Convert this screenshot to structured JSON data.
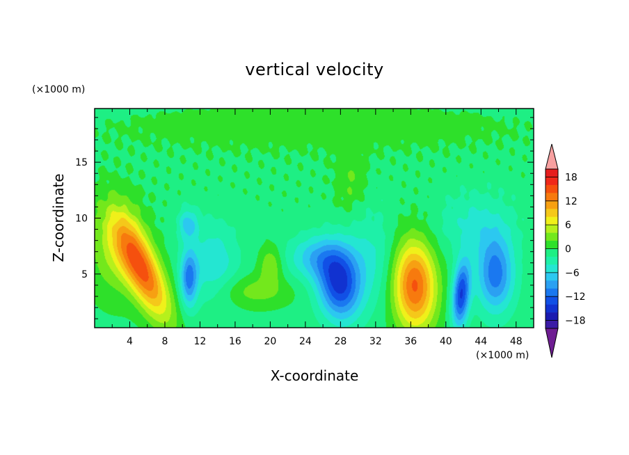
{
  "chart_data": {
    "type": "heatmap",
    "title": "vertical velocity",
    "xlabel": "X-coordinate",
    "ylabel": "Z-coordinate",
    "x_unit": "(×1000 m)",
    "y_unit": "(×1000 m)",
    "xlim": [
      0,
      50
    ],
    "ylim": [
      0.2,
      19.8
    ],
    "xticks": [
      4,
      8,
      12,
      16,
      20,
      24,
      28,
      32,
      36,
      40,
      44,
      48
    ],
    "yticks": [
      5,
      10,
      15
    ],
    "colorbar": {
      "ticks": [
        18,
        12,
        6,
        0,
        -6,
        -12,
        -18
      ],
      "levels": [
        -20,
        -18,
        -16,
        -14,
        -12,
        -10,
        -8,
        -6,
        -4,
        -2,
        0,
        2,
        4,
        6,
        8,
        10,
        12,
        14,
        16,
        18,
        20
      ],
      "colors": [
        "#6e1d92",
        "#3b1ba6",
        "#1a1ab0",
        "#1132d0",
        "#1150e6",
        "#1a78f0",
        "#2ba0f2",
        "#2cc8f0",
        "#24e6d2",
        "#1ef0a8",
        "#1eef84",
        "#2ee02a",
        "#73e81c",
        "#b6f01c",
        "#f0f01a",
        "#f5c81a",
        "#f7a012",
        "#f77a0e",
        "#f5500e",
        "#f0281a",
        "#e61e1e",
        "#f7a0a0"
      ],
      "extend": "both"
    },
    "features": [
      {
        "x": 5.0,
        "z": 5.5,
        "value": 14
      },
      {
        "x": 10.6,
        "z": 5.0,
        "value": -10
      },
      {
        "x": 20.0,
        "z": 5.8,
        "value": 4
      },
      {
        "x": 27.8,
        "z": 4.2,
        "value": -14
      },
      {
        "x": 29.0,
        "z": 13.0,
        "value": 3
      },
      {
        "x": 36.5,
        "z": 3.8,
        "value": 14
      },
      {
        "x": 41.6,
        "z": 3.2,
        "value": -14
      },
      {
        "x": 45.5,
        "z": 5.0,
        "value": -11
      }
    ]
  }
}
